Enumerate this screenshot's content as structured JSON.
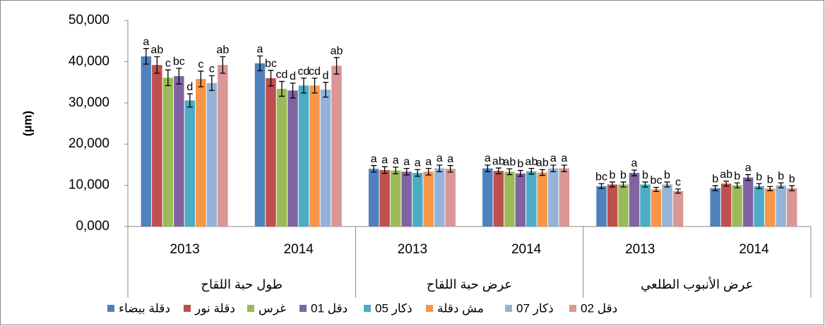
{
  "chart_data": {
    "type": "bar",
    "y_label": "(µm)",
    "categories": [
      "2013",
      "2014",
      "2013",
      "2014",
      "2013",
      "2014"
    ],
    "groups": [
      "طول حبة اللقاح",
      "عرض حبة اللقاح",
      "عرض الأنبوب الطلعي"
    ],
    "ylim": [
      0,
      50000
    ],
    "yticks": [
      {
        "value": 0,
        "label": "0,000"
      },
      {
        "value": 10000,
        "label": "10,000"
      },
      {
        "value": 20000,
        "label": "20,000"
      },
      {
        "value": 30000,
        "label": "30,000"
      },
      {
        "value": 40000,
        "label": "40,000"
      },
      {
        "value": 50000,
        "label": "50,000"
      }
    ],
    "grid": false,
    "legend": "bottom",
    "series": [
      {
        "name": "دقلة بيضاء",
        "color": "#4f81bd",
        "values": [
          41300,
          39600,
          14000,
          14100,
          9800,
          9300
        ],
        "errors": [
          1900,
          1800,
          800,
          800,
          600,
          600
        ],
        "letters": [
          "a",
          "a",
          "a",
          "a",
          "bc",
          "b"
        ]
      },
      {
        "name": "دقلة نور",
        "color": "#c0504d",
        "values": [
          39200,
          36000,
          13700,
          13500,
          10200,
          10400
        ],
        "errors": [
          2000,
          1900,
          800,
          700,
          600,
          600
        ],
        "letters": [
          "ab",
          "bc",
          "a",
          "ab",
          "b",
          "ab"
        ]
      },
      {
        "name": "غرس",
        "color": "#9bbb59",
        "values": [
          36100,
          33400,
          13600,
          13300,
          10200,
          10000
        ],
        "errors": [
          1900,
          1800,
          800,
          700,
          600,
          600
        ],
        "letters": [
          "c",
          "cd",
          "a",
          "ab",
          "b",
          "b"
        ]
      },
      {
        "name": "دقل 01",
        "color": "#8064a2",
        "values": [
          36500,
          33000,
          13300,
          12900,
          13000,
          11900
        ],
        "errors": [
          1900,
          1800,
          800,
          700,
          700,
          700
        ],
        "letters": [
          "bc",
          "d",
          "a",
          "b",
          "a",
          "a"
        ]
      },
      {
        "name": "ذكار 05",
        "color": "#4bacc6",
        "values": [
          30600,
          34200,
          13000,
          13400,
          10200,
          9800
        ],
        "errors": [
          1600,
          1800,
          800,
          700,
          600,
          600
        ],
        "letters": [
          "d",
          "cd",
          "a",
          "ab",
          "b",
          "b"
        ]
      },
      {
        "name": "مش دقلة",
        "color": "#f79646",
        "values": [
          35800,
          34200,
          13300,
          13100,
          9000,
          9200
        ],
        "errors": [
          1900,
          1800,
          800,
          700,
          500,
          500
        ],
        "letters": [
          "c",
          "cd",
          "a",
          "ab",
          "bc",
          "b"
        ]
      },
      {
        "name": "ذكار 07",
        "color": "#95b3d7",
        "values": [
          34800,
          33200,
          14100,
          14100,
          10200,
          10000
        ],
        "errors": [
          1800,
          1800,
          800,
          800,
          600,
          600
        ],
        "letters": [
          "c",
          "d",
          "a",
          "a",
          "b",
          "b"
        ]
      },
      {
        "name": "دقل 02",
        "color": "#d99694",
        "values": [
          39200,
          39000,
          14000,
          14100,
          8600,
          9300
        ],
        "errors": [
          2000,
          2000,
          800,
          800,
          500,
          600
        ],
        "letters": [
          "ab",
          "ab",
          "a",
          "a",
          "c",
          "b"
        ]
      }
    ]
  }
}
